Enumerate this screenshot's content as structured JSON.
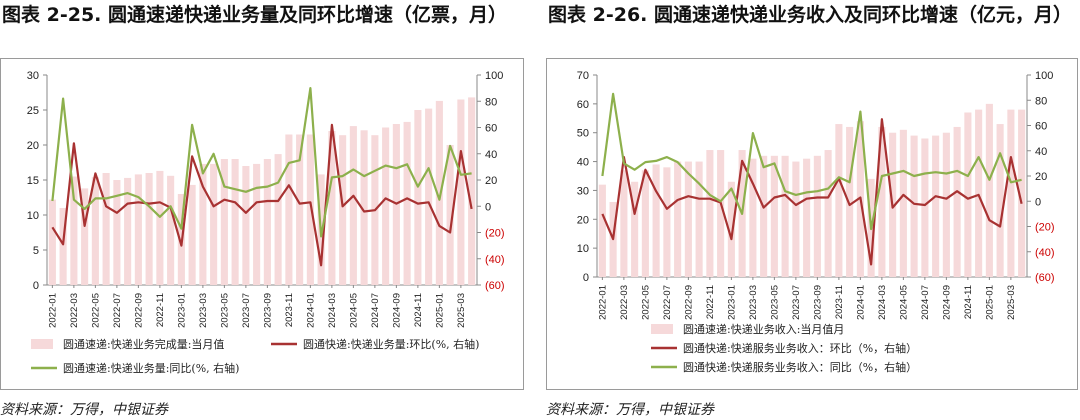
{
  "charts": [
    {
      "title": "图表 2-25. 圆通速递快递业务量及同环比增速（亿票，月）",
      "source": "资料来源：万得，中银证券"
    },
    {
      "title": "图表 2-26. 圆通速递快递业务收入及同环比增速（亿元，月）",
      "source": "资料来源：万得，中银证券"
    }
  ],
  "colors": {
    "bar": "#f6d9da",
    "mom": "#a83232",
    "yoy": "#8db04c",
    "neg_tick": "#cc0000"
  },
  "chart_data": [
    {
      "type": "bar+line",
      "x": [
        "2022-01",
        "2022-02",
        "2022-03",
        "2022-04",
        "2022-05",
        "2022-06",
        "2022-07",
        "2022-08",
        "2022-09",
        "2022-10",
        "2022-11",
        "2022-12",
        "2023-01",
        "2023-02",
        "2023-03",
        "2023-04",
        "2023-05",
        "2023-06",
        "2023-07",
        "2023-08",
        "2023-09",
        "2023-10",
        "2023-11",
        "2023-12",
        "2024-01",
        "2024-02",
        "2024-03",
        "2024-04",
        "2024-05",
        "2024-06",
        "2024-07",
        "2024-08",
        "2024-09",
        "2024-10",
        "2024-11",
        "2024-12",
        "2025-01",
        "2025-02",
        "2025-03",
        "2025-04"
      ],
      "x_tick_labels": [
        "2022-01",
        "2022-03",
        "2022-05",
        "2022-07",
        "2022-09",
        "2022-11",
        "2023-01",
        "2023-03",
        "2023-05",
        "2023-07",
        "2023-09",
        "2023-11",
        "2024-01",
        "2024-03",
        "2024-05",
        "2024-07",
        "2024-09",
        "2024-11",
        "2025-01",
        "2025-03"
      ],
      "left_axis": {
        "ylim": [
          0,
          30
        ],
        "ticks": [
          "0",
          "5",
          "10",
          "15",
          "20",
          "25",
          "30"
        ]
      },
      "right_axis": {
        "ylim": [
          -60,
          100
        ],
        "ticks": [
          "(60)",
          "(40)",
          "(20)",
          "0",
          "20",
          "40",
          "60",
          "80",
          "100"
        ]
      },
      "series": [
        {
          "name": "圆通速递:快递业务完成量:当月值",
          "type": "bar",
          "axis": "left",
          "values": [
            12.2,
            11.0,
            15.5,
            13.8,
            15.4,
            16.0,
            15.0,
            15.3,
            15.8,
            16.0,
            16.3,
            15.6,
            13.0,
            14.3,
            17.3,
            17.3,
            18.0,
            18.0,
            17.0,
            17.3,
            18.0,
            18.7,
            21.5,
            21.5,
            21.5,
            15.8,
            22.0,
            21.4,
            22.7,
            22.1,
            21.4,
            22.5,
            23.0,
            23.3,
            25.0,
            25.2,
            26.3,
            20.0,
            26.5,
            26.8
          ]
        },
        {
          "name": "圆通快递:快递业务量:环比(%, 右轴)",
          "type": "line",
          "axis": "right",
          "values": [
            -16,
            -29,
            48,
            -15,
            25,
            0,
            -5,
            2,
            3,
            2,
            3,
            -1,
            -30,
            38,
            15,
            0,
            5,
            3,
            -5,
            3,
            4,
            4,
            16,
            2,
            3,
            -45,
            62,
            0,
            8,
            -4,
            -3,
            6,
            2,
            6,
            2,
            3,
            -15,
            -20,
            42,
            -2
          ]
        },
        {
          "name": "圆通速递:快递业务量:同比(%, 右轴)",
          "type": "line",
          "axis": "right",
          "values": [
            4,
            82,
            5,
            -2,
            6,
            6,
            8,
            10,
            7,
            0,
            -8,
            0,
            -17,
            62,
            25,
            40,
            15,
            13,
            11,
            14,
            15,
            18,
            33,
            35,
            90,
            -23,
            22,
            23,
            28,
            23,
            27,
            31,
            29,
            32,
            15,
            29,
            5,
            46,
            24,
            25
          ]
        }
      ]
    },
    {
      "type": "bar+line",
      "x": [
        "2022-01",
        "2022-02",
        "2022-03",
        "2022-04",
        "2022-05",
        "2022-06",
        "2022-07",
        "2022-08",
        "2022-09",
        "2022-10",
        "2022-11",
        "2022-12",
        "2023-01",
        "2023-02",
        "2023-03",
        "2023-04",
        "2023-05",
        "2023-06",
        "2023-07",
        "2023-08",
        "2023-09",
        "2023-10",
        "2023-11",
        "2023-12",
        "2024-01",
        "2024-02",
        "2024-03",
        "2024-04",
        "2024-05",
        "2024-06",
        "2024-07",
        "2024-08",
        "2024-09",
        "2024-10",
        "2024-11",
        "2024-12",
        "2025-01",
        "2025-02",
        "2025-03",
        "2025-04"
      ],
      "x_tick_labels": [
        "2022-01",
        "2022-03",
        "2022-05",
        "2022-07",
        "2022-09",
        "2022-11",
        "2023-01",
        "2023-03",
        "2023-05",
        "2023-07",
        "2023-09",
        "2023-11",
        "2024-01",
        "2024-03",
        "2024-05",
        "2024-07",
        "2024-09",
        "2024-11",
        "2025-01",
        "2025-03"
      ],
      "left_axis": {
        "ylim": [
          0,
          70
        ],
        "ticks": [
          "0",
          "10",
          "20",
          "30",
          "40",
          "50",
          "60",
          "70"
        ]
      },
      "right_axis": {
        "ylim": [
          -60,
          100
        ],
        "ticks": [
          "(60)",
          "(40)",
          "(20)",
          "0",
          "20",
          "40",
          "60",
          "80",
          "100"
        ]
      },
      "series": [
        {
          "name": "圆通速递:快递业务收入:当月值月",
          "type": "bar",
          "axis": "left",
          "values": [
            32,
            26,
            37,
            33,
            37,
            39,
            38,
            40,
            40,
            40,
            44,
            44,
            33,
            44,
            41,
            42,
            42,
            42,
            40,
            41,
            42,
            44,
            53,
            52,
            54,
            34,
            52,
            50,
            51,
            49,
            48,
            49,
            50,
            52,
            57,
            58,
            60,
            53,
            58,
            58
          ]
        },
        {
          "name": "圆通快递:快递服务业务收入：环比（%，右轴）",
          "type": "line",
          "axis": "right",
          "values": [
            -10,
            -30,
            35,
            -10,
            25,
            8,
            -6,
            1,
            4,
            2,
            2,
            -1,
            -30,
            32,
            14,
            -5,
            3,
            5,
            -3,
            2,
            3,
            3,
            18,
            -3,
            3,
            -50,
            65,
            -5,
            5,
            -2,
            -3,
            4,
            2,
            8,
            2,
            5,
            -15,
            -20,
            35,
            -2
          ]
        },
        {
          "name": "圆通快递:快递服务业务收入：同比（%，右轴）",
          "type": "line",
          "axis": "right",
          "values": [
            20,
            85,
            30,
            25,
            31,
            32,
            35,
            31,
            22,
            14,
            5,
            0,
            10,
            -10,
            54,
            27,
            30,
            8,
            5,
            7,
            8,
            10,
            19,
            15,
            71,
            -22,
            20,
            22,
            24,
            20,
            22,
            23,
            22,
            24,
            20,
            35,
            17,
            38,
            15,
            17
          ]
        }
      ]
    }
  ]
}
